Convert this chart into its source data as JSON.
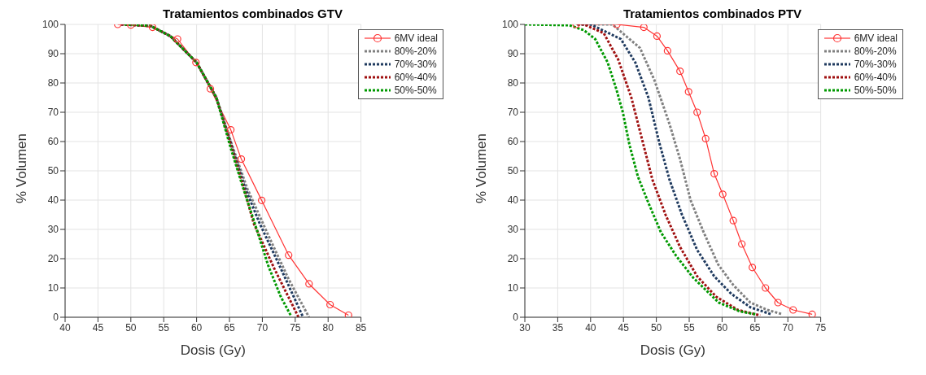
{
  "chart_data": [
    {
      "type": "line",
      "title": "Tratamientos combinados GTV",
      "xlabel": "Dosis (Gy)",
      "ylabel": "% Volumen",
      "xlim": [
        40,
        85
      ],
      "xticks": [
        40,
        45,
        50,
        55,
        60,
        65,
        70,
        75,
        80,
        85
      ],
      "ylim": [
        0,
        100
      ],
      "yticks": [
        0,
        10,
        20,
        30,
        40,
        50,
        60,
        70,
        80,
        90,
        100
      ],
      "grid": true,
      "legend": "top right",
      "series": [
        {
          "name": "6MV ideal",
          "color": "#ff3333",
          "marker": "circle",
          "line_style": "solid",
          "x": [
            48,
            50,
            53.3,
            57.1,
            59.9,
            62.1,
            65.2,
            66.8,
            69.9,
            74,
            77.1,
            80.3,
            83.1
          ],
          "values": [
            100,
            99.8,
            99,
            95,
            87,
            78,
            64,
            54,
            39.9,
            21.2,
            11.4,
            4.3,
            0.7
          ]
        },
        {
          "name": "80%-20%",
          "color": "#808080",
          "marker": "none",
          "line_style": "dotted",
          "x": [
            53,
            56,
            60,
            63,
            65.2,
            67.7,
            70.9,
            74,
            77.1
          ],
          "values": [
            99.5,
            96,
            87,
            75,
            60,
            44,
            28,
            13,
            0
          ]
        },
        {
          "name": "70%-30%",
          "color": "#1f3a5f",
          "marker": "none",
          "line_style": "dotted",
          "x": [
            48.5,
            53,
            56,
            60,
            63,
            65.2,
            67.4,
            69.6,
            72.8,
            76.2
          ],
          "values": [
            100,
            99.5,
            96,
            87,
            75,
            59.5,
            44,
            32,
            16.7,
            0
          ]
        },
        {
          "name": "60%-40%",
          "color": "#a01010",
          "marker": "none",
          "line_style": "dotted",
          "x": [
            48.5,
            53,
            56,
            60,
            63,
            65.2,
            67.2,
            68.7,
            71.8,
            75.5
          ],
          "values": [
            100,
            99.5,
            96,
            87,
            75,
            59,
            44,
            32,
            16.7,
            0
          ]
        },
        {
          "name": "50%-50%",
          "color": "#009900",
          "marker": "none",
          "line_style": "dotted",
          "x": [
            49,
            53,
            56,
            60,
            63,
            65.2,
            67.1,
            69,
            70.9,
            72.8,
            74.3
          ],
          "values": [
            100,
            99.5,
            96,
            87,
            75,
            57.7,
            44,
            31,
            17.6,
            7,
            0.7
          ]
        }
      ]
    },
    {
      "type": "line",
      "title": "Tratamientos combinados PTV",
      "xlabel": "Dosis (Gy)",
      "ylabel": "% Volumen",
      "xlim": [
        30,
        75
      ],
      "xticks": [
        30,
        35,
        40,
        45,
        50,
        55,
        60,
        65,
        70,
        75
      ],
      "ylim": [
        0,
        100
      ],
      "yticks": [
        0,
        10,
        20,
        30,
        40,
        50,
        60,
        70,
        80,
        90,
        100
      ],
      "grid": true,
      "legend": "top right",
      "series": [
        {
          "name": "6MV ideal",
          "color": "#ff3333",
          "marker": "circle",
          "line_style": "solid",
          "x": [
            37.8,
            44,
            48.1,
            50.1,
            51.7,
            53.6,
            54.9,
            56.2,
            57.5,
            58.8,
            60.1,
            61.7,
            63,
            64.6,
            66.6,
            68.5,
            70.8,
            73.7
          ],
          "values": [
            100,
            100,
            99,
            96,
            91,
            84,
            77,
            70,
            61,
            49,
            42,
            33,
            25,
            17,
            10,
            5,
            2.5,
            1
          ]
        },
        {
          "name": "80%-20%",
          "color": "#808080",
          "marker": "none",
          "line_style": "dotted",
          "x": [
            38,
            43.3,
            47.5,
            49.7,
            52,
            53.6,
            55.2,
            57.2,
            59.4,
            61.7,
            64.3,
            66.9,
            69.2
          ],
          "values": [
            100,
            100,
            92,
            81,
            66,
            54,
            40,
            29,
            18,
            11,
            5,
            2.5,
            1
          ]
        },
        {
          "name": "70%-30%",
          "color": "#1f3a5f",
          "marker": "none",
          "line_style": "dotted",
          "x": [
            38,
            40,
            44.6,
            46.8,
            48.8,
            50.4,
            52,
            53.9,
            56.2,
            58.8,
            61.4,
            64.3,
            67.5
          ],
          "values": [
            100,
            100,
            95,
            87,
            75,
            60,
            47,
            35,
            23,
            14,
            8,
            3.4,
            1
          ]
        },
        {
          "name": "60%-40%",
          "color": "#a01010",
          "marker": "none",
          "line_style": "dotted",
          "x": [
            38,
            39,
            42,
            44.2,
            46.2,
            47.8,
            49.4,
            51.4,
            53.6,
            56.2,
            59.1,
            62.4,
            65.8
          ],
          "values": [
            100,
            100,
            97,
            88,
            75,
            61,
            47,
            35,
            24,
            14,
            7,
            2.5,
            0.6
          ]
        },
        {
          "name": "50%-50%",
          "color": "#009900",
          "marker": "none",
          "line_style": "dotted",
          "x": [
            30,
            36.8,
            39,
            40.7,
            42.6,
            43.9,
            44.9,
            45.9,
            47.2,
            48.8,
            50.7,
            53,
            55.6,
            59.5,
            62.7,
            65.1
          ],
          "values": [
            100,
            99.7,
            98,
            95,
            87,
            78,
            70,
            59,
            48,
            39,
            29,
            21,
            13.5,
            5,
            2,
            1
          ]
        }
      ]
    }
  ]
}
